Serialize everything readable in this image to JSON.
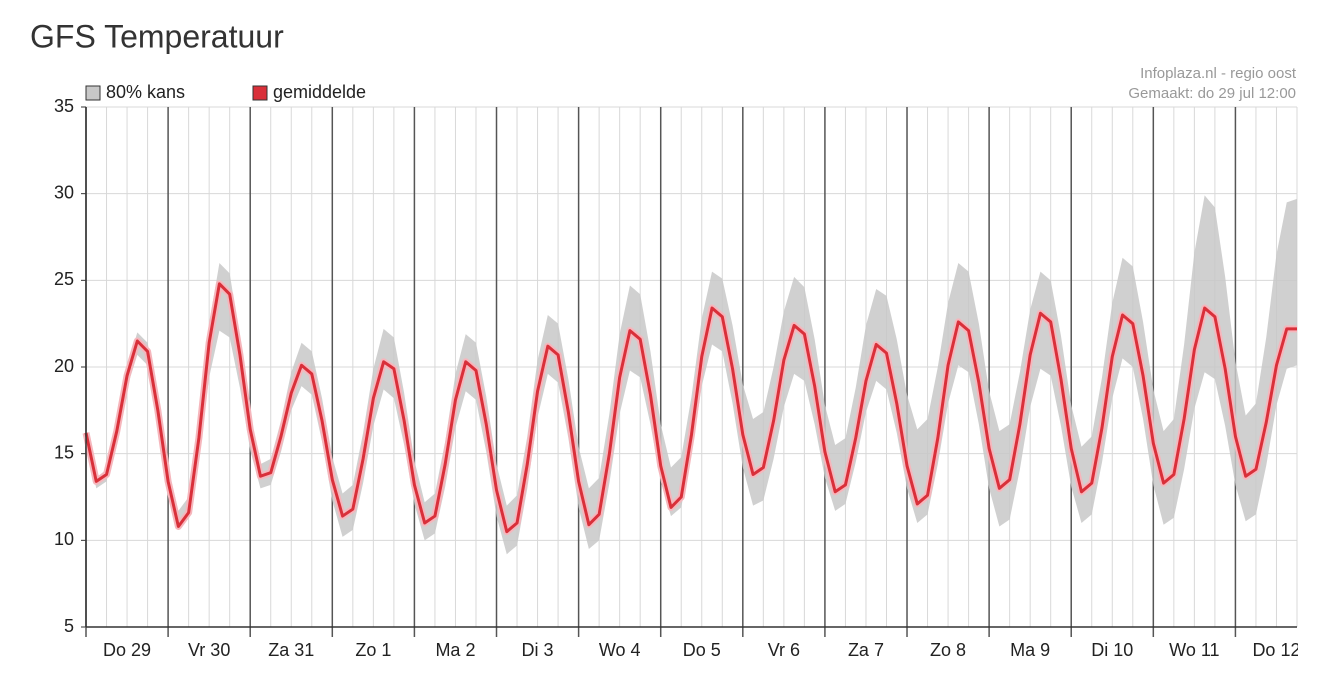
{
  "chart_data": {
    "type": "line",
    "title": "GFS Temperatuur",
    "annotations": [
      "Infoplaza.nl - regio oost",
      "Gemaakt: do 29 jul 12:00"
    ],
    "categories": [
      null,
      null,
      null,
      null,
      "Do 29",
      null,
      null,
      null,
      null,
      null,
      null,
      null,
      "Vr 30",
      null,
      null,
      null,
      null,
      null,
      null,
      null,
      "Za 31",
      null,
      null,
      null,
      null,
      null,
      null,
      null,
      "Zo 1",
      null,
      null,
      null,
      null,
      null,
      null,
      null,
      "Ma 2",
      null,
      null,
      null,
      null,
      null,
      null,
      null,
      "Di 3",
      null,
      null,
      null,
      null,
      null,
      null,
      null,
      "Wo 4",
      null,
      null,
      null,
      null,
      null,
      null,
      null,
      "Do 5",
      null,
      null,
      null,
      null,
      null,
      null,
      null,
      "Vr 6",
      null,
      null,
      null,
      null,
      null,
      null,
      null,
      "Za 7",
      null,
      null,
      null,
      null,
      null,
      null,
      null,
      "Zo 8",
      null,
      null,
      null,
      null,
      null,
      null,
      null,
      "Ma 9",
      null,
      null,
      null,
      null,
      null,
      null,
      null,
      "Di 10",
      null,
      null,
      null,
      null,
      null,
      null,
      null,
      "Wo 11",
      null,
      null,
      null,
      null,
      null,
      null,
      null,
      "Do 12",
      null,
      null
    ],
    "series": [
      {
        "name": "80% kans",
        "type": "band",
        "color": "#c8c8c8",
        "upper": [
          16.5,
          13.6,
          14.1,
          16.7,
          20.0,
          22.0,
          21.4,
          18.2,
          14.2,
          11.7,
          12.5,
          17.0,
          22.5,
          26.0,
          25.4,
          21.7,
          17.2,
          14.4,
          14.7,
          16.9,
          19.7,
          21.4,
          20.9,
          18.2,
          14.8,
          12.7,
          13.2,
          16.2,
          19.9,
          22.2,
          21.7,
          18.5,
          14.6,
          12.2,
          12.7,
          15.7,
          19.6,
          21.9,
          21.4,
          18.3,
          14.4,
          12.0,
          12.6,
          16.0,
          20.4,
          23.0,
          22.5,
          19.3,
          15.4,
          13.0,
          13.6,
          17.3,
          21.9,
          24.7,
          24.2,
          20.9,
          16.7,
          14.2,
          14.8,
          18.3,
          22.8,
          25.5,
          25.1,
          22.4,
          19.0,
          17.0,
          17.4,
          20.0,
          23.2,
          25.2,
          24.6,
          21.6,
          17.8,
          15.5,
          15.9,
          18.8,
          22.4,
          24.5,
          24.1,
          21.6,
          18.4,
          16.4,
          17.0,
          20.0,
          23.7,
          26.0,
          25.5,
          22.5,
          18.6,
          16.3,
          16.7,
          19.7,
          23.3,
          25.5,
          25.0,
          21.8,
          17.8,
          15.4,
          16.0,
          19.4,
          23.7,
          26.3,
          25.8,
          22.6,
          18.7,
          16.3,
          17.0,
          21.3,
          26.6,
          29.9,
          29.2,
          25.2,
          20.3,
          17.2,
          17.9,
          21.7,
          26.5,
          29.5,
          29.7
        ],
        "lower": [
          15.9,
          13.0,
          13.4,
          15.8,
          18.8,
          20.7,
          20.1,
          17.0,
          13.1,
          10.7,
          11.3,
          14.9,
          19.4,
          22.1,
          21.7,
          18.8,
          15.2,
          13.0,
          13.2,
          15.1,
          17.5,
          18.9,
          18.4,
          15.7,
          12.3,
          10.2,
          10.6,
          13.3,
          16.6,
          18.7,
          18.2,
          15.5,
          12.1,
          10.0,
          10.4,
          13.1,
          16.5,
          18.6,
          18.1,
          15.1,
          11.4,
          9.2,
          9.7,
          13.0,
          17.1,
          19.6,
          19.1,
          15.9,
          11.9,
          9.5,
          10.0,
          13.3,
          17.3,
          19.8,
          19.4,
          16.7,
          13.4,
          11.4,
          11.9,
          15.0,
          18.9,
          21.3,
          20.9,
          17.9,
          14.2,
          12.0,
          12.3,
          14.7,
          17.7,
          19.6,
          19.2,
          16.7,
          13.6,
          11.7,
          12.1,
          14.5,
          17.4,
          19.2,
          18.7,
          16.2,
          13.0,
          11.0,
          11.5,
          14.4,
          17.9,
          20.1,
          19.7,
          16.7,
          13.0,
          10.8,
          11.2,
          14.1,
          17.7,
          19.9,
          19.5,
          16.6,
          13.1,
          11.0,
          11.5,
          14.5,
          18.2,
          20.5,
          20.0,
          17.0,
          13.2,
          10.9,
          11.3,
          14.1,
          17.6,
          19.7,
          19.3,
          16.6,
          13.2,
          11.1,
          11.5,
          14.3,
          17.8,
          19.9,
          20.1
        ]
      },
      {
        "name": "gemiddelde",
        "color": "#d9303a",
        "values": [
          16.2,
          13.4,
          13.8,
          16.3,
          19.5,
          21.5,
          20.9,
          17.5,
          13.4,
          10.8,
          11.6,
          15.9,
          21.4,
          24.8,
          24.2,
          20.7,
          16.4,
          13.7,
          13.9,
          16.0,
          18.5,
          20.1,
          19.6,
          16.9,
          13.5,
          11.4,
          11.8,
          14.7,
          18.2,
          20.3,
          19.9,
          16.9,
          13.2,
          11.0,
          11.4,
          14.4,
          18.1,
          20.3,
          19.8,
          16.7,
          12.9,
          10.5,
          11.0,
          14.4,
          18.6,
          21.2,
          20.7,
          17.4,
          13.4,
          10.9,
          11.5,
          15.0,
          19.4,
          22.1,
          21.6,
          18.4,
          14.3,
          11.9,
          12.5,
          16.1,
          20.6,
          23.4,
          22.9,
          19.9,
          16.1,
          13.8,
          14.2,
          16.9,
          20.4,
          22.4,
          21.9,
          18.9,
          15.1,
          12.8,
          13.2,
          15.9,
          19.2,
          21.3,
          20.8,
          17.9,
          14.3,
          12.1,
          12.6,
          15.9,
          20.1,
          22.6,
          22.1,
          19.1,
          15.3,
          13.0,
          13.5,
          16.7,
          20.7,
          23.1,
          22.6,
          19.3,
          15.3,
          12.8,
          13.3,
          16.5,
          20.6,
          23.0,
          22.5,
          19.5,
          15.6,
          13.3,
          13.8,
          17.0,
          21.0,
          23.4,
          22.9,
          19.9,
          16.0,
          13.7,
          14.1,
          16.8,
          20.1,
          22.2,
          22.2
        ]
      }
    ],
    "ylim": [
      5,
      35
    ],
    "yticks": [
      5,
      10,
      15,
      20,
      25,
      30,
      35
    ],
    "grid": true
  }
}
